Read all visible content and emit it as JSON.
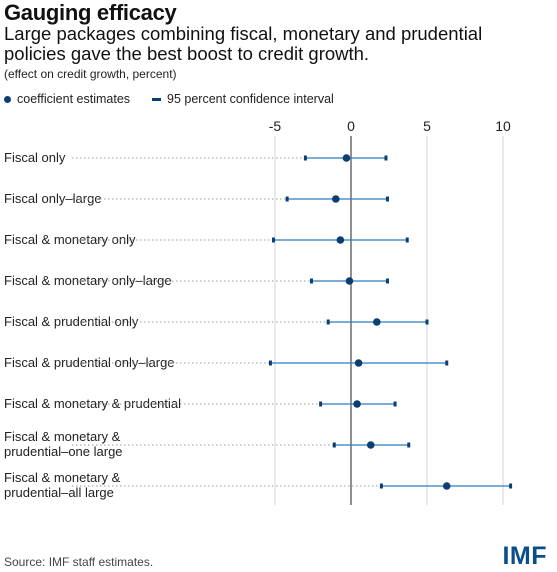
{
  "header": {
    "title": "Gauging efficacy",
    "subtitle": "Large packages combining fiscal, monetary and prudential policies gave the best boost to credit growth.",
    "units": "(effect on credit growth, percent)"
  },
  "legend": {
    "estimate_label": "coefficient estimates",
    "ci_label": "95 percent confidence interval"
  },
  "footer": {
    "source": "Source:  IMF staff estimates.",
    "logo": "IMF"
  },
  "colors": {
    "marker": "#0b3f73",
    "interval": "#2a7ec0",
    "leader": "#9a9a9a",
    "zero_line": "#555555",
    "grid": "#d6d6d6"
  },
  "chart_data": {
    "type": "scatter",
    "orientation": "horizontal",
    "xlim": [
      -5,
      10
    ],
    "x_ticks": [
      "-5",
      "0",
      "5",
      "10"
    ],
    "categories": [
      [
        "Fiscal only"
      ],
      [
        "Fiscal only–large"
      ],
      [
        "Fiscal & monetary only"
      ],
      [
        "Fiscal & monetary only–large"
      ],
      [
        "Fiscal & prudential only"
      ],
      [
        "Fiscal  & prudential only–large"
      ],
      [
        "Fiscal & monetary & prudential"
      ],
      [
        "Fiscal & monetary &",
        "prudential–one large"
      ],
      [
        "Fiscal & monetary &",
        "prudential–all large"
      ]
    ],
    "series": [
      {
        "name": "coefficient estimates",
        "values": [
          -0.3,
          -1.0,
          -0.7,
          -0.1,
          1.7,
          0.5,
          0.4,
          1.3,
          6.3
        ]
      },
      {
        "name": "95 percent confidence interval",
        "low": [
          -3.0,
          -4.2,
          -5.1,
          -2.6,
          -1.5,
          -5.3,
          -2.0,
          -1.1,
          2.0
        ],
        "high": [
          2.3,
          2.4,
          3.7,
          2.4,
          5.0,
          6.3,
          2.9,
          3.8,
          10.5
        ]
      }
    ]
  }
}
